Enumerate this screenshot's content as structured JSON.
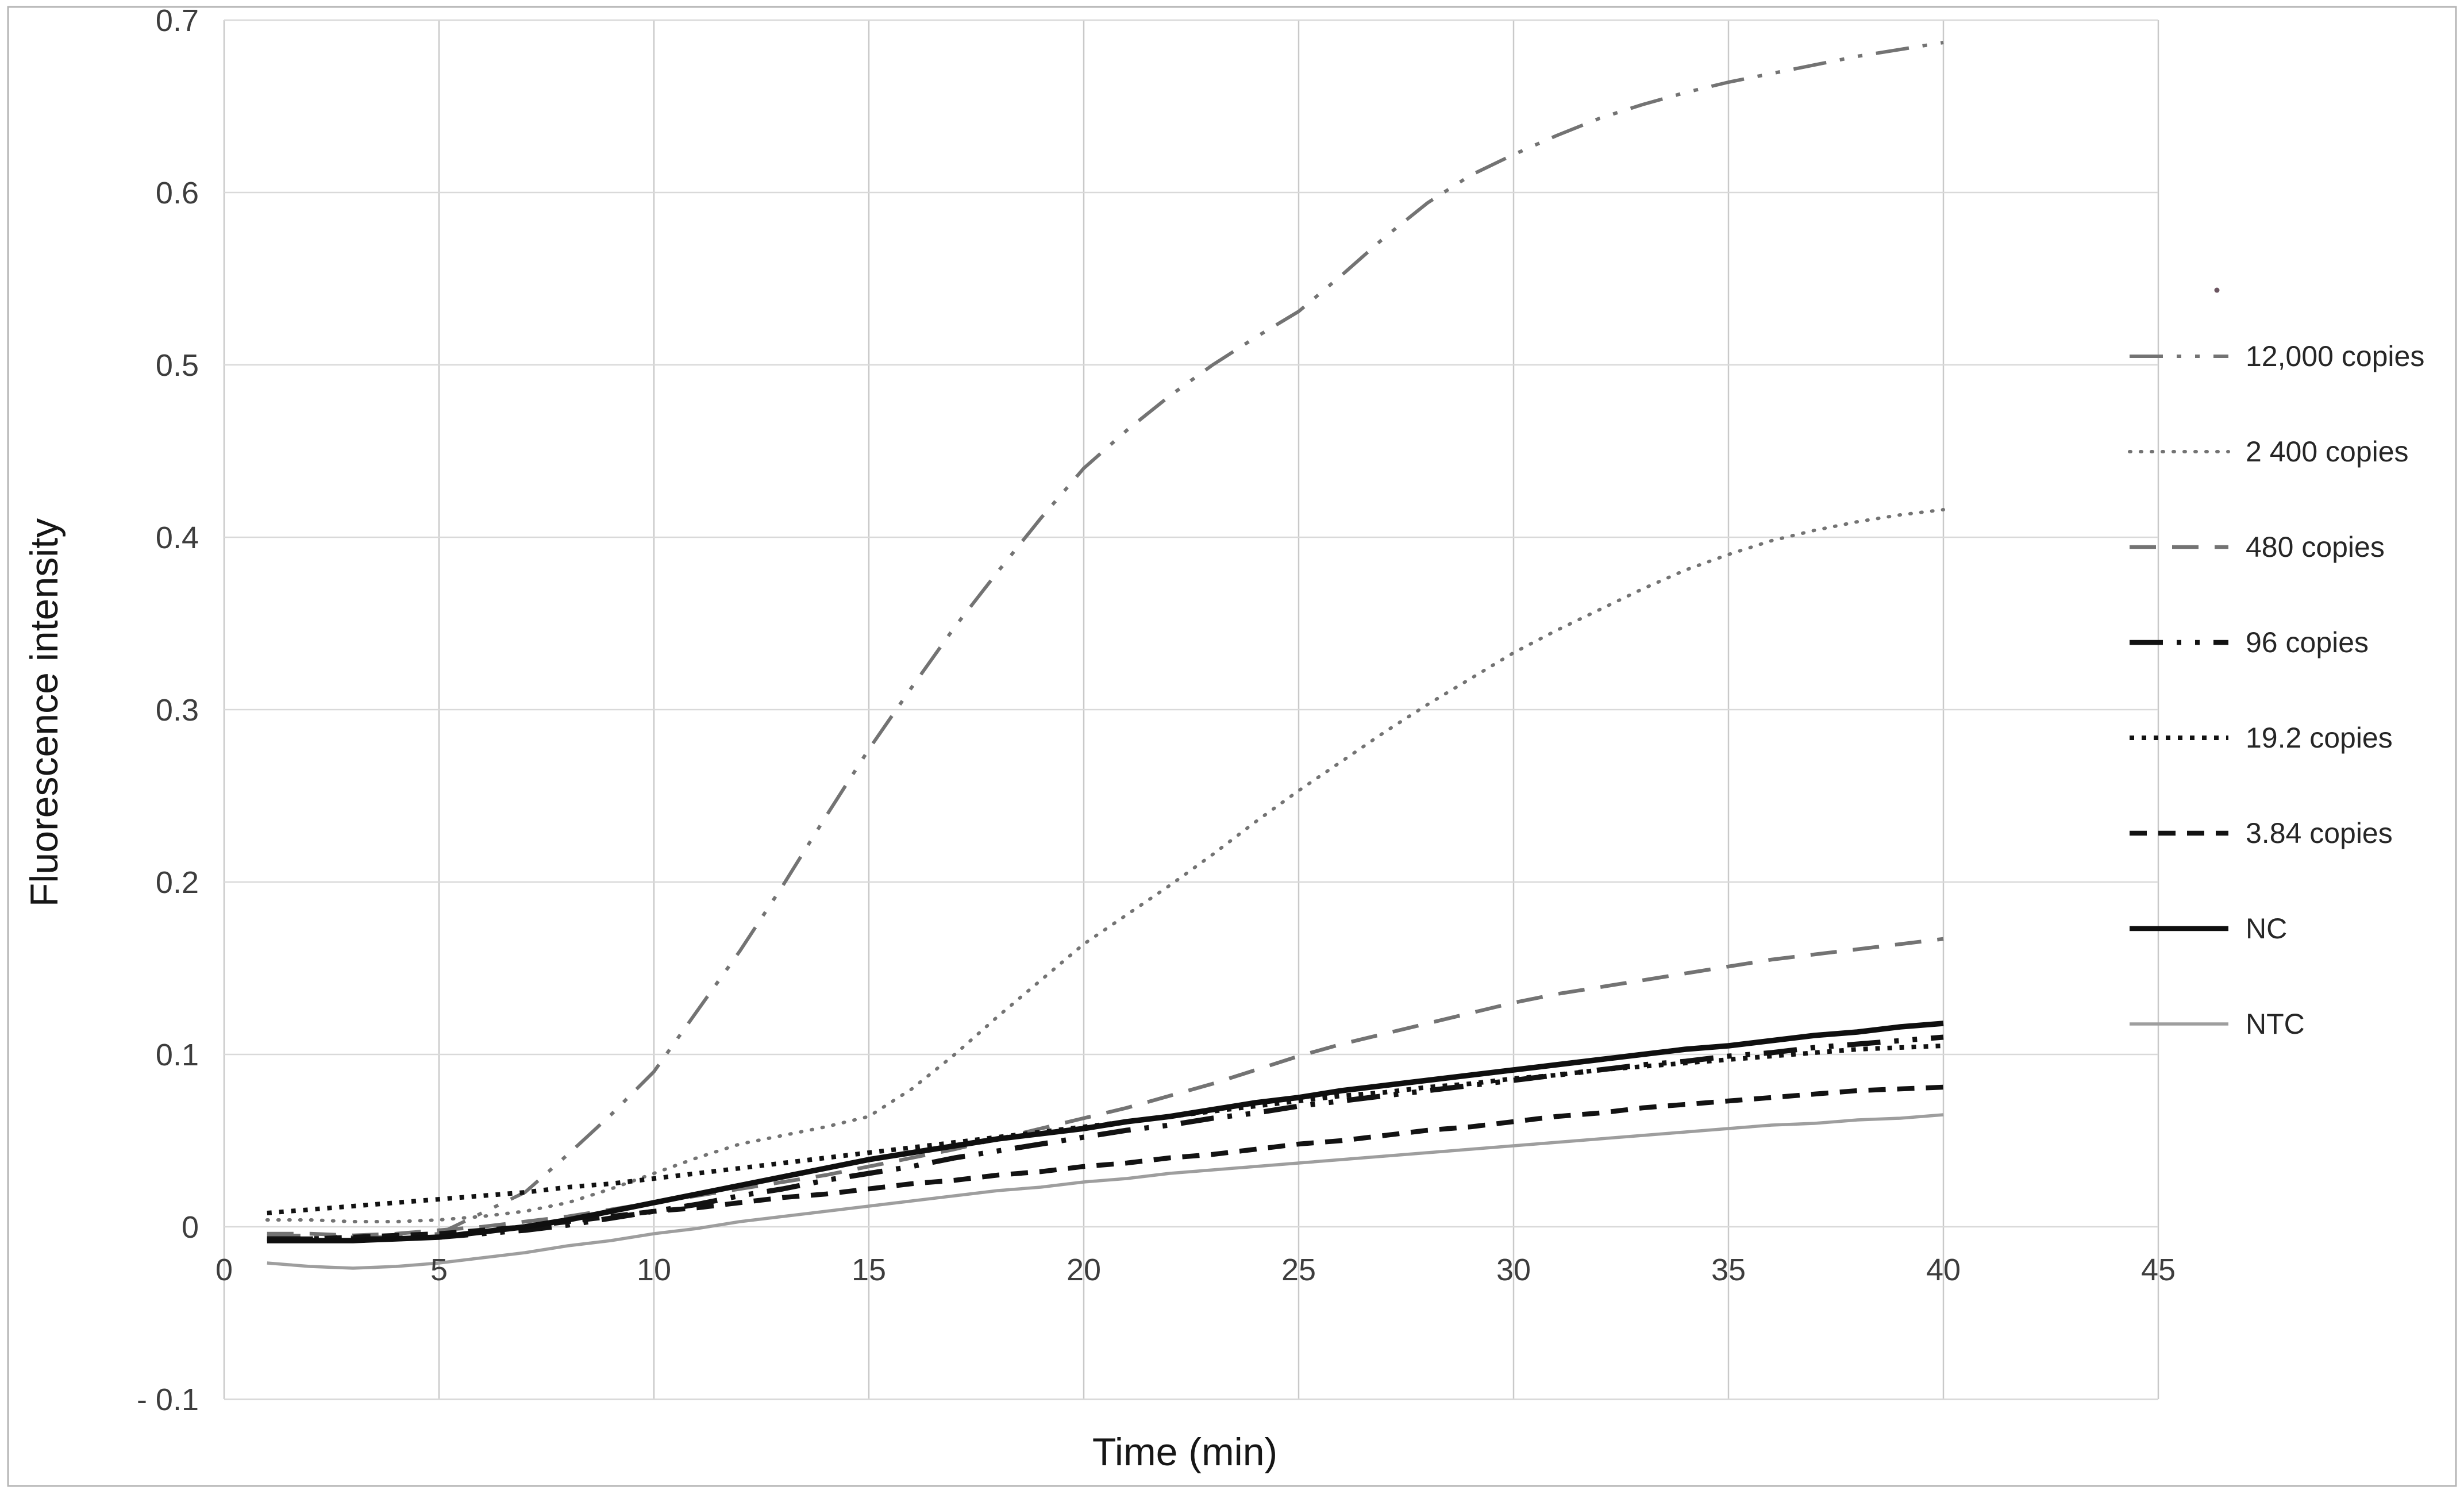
{
  "figure": {
    "x_axis_title": "Time (min)",
    "y_axis_title": "Fluorescence intensity"
  },
  "colors": {
    "gray_series": "#737373",
    "black_series": "#121212",
    "ntc_gray": "#9e9e9e",
    "gridline_h": "#d9d9d9",
    "gridline_v": "#c9c9c9",
    "figure_border": "#b5b5b5",
    "tick_text": "#3d3d3d"
  },
  "chart_data": {
    "type": "line",
    "title": "",
    "xlabel": "Time (min)",
    "ylabel": "Fluorescence intensity",
    "xlim": [
      0,
      45
    ],
    "ylim": [
      -0.1,
      0.7
    ],
    "grid": true,
    "legend_position": "right",
    "x_ticks": [
      {
        "v": 0,
        "label": "0"
      },
      {
        "v": 5,
        "label": "5"
      },
      {
        "v": 10,
        "label": "10"
      },
      {
        "v": 15,
        "label": "15"
      },
      {
        "v": 20,
        "label": "20"
      },
      {
        "v": 25,
        "label": "25"
      },
      {
        "v": 30,
        "label": "30"
      },
      {
        "v": 35,
        "label": "35"
      },
      {
        "v": 40,
        "label": "40"
      },
      {
        "v": 45,
        "label": "45"
      }
    ],
    "y_ticks": [
      {
        "v": 0.7,
        "label": "0.7"
      },
      {
        "v": 0.6,
        "label": "0.6"
      },
      {
        "v": 0.5,
        "label": "0.5"
      },
      {
        "v": 0.4,
        "label": "0.4"
      },
      {
        "v": 0.3,
        "label": "0.3"
      },
      {
        "v": 0.2,
        "label": "0.2"
      },
      {
        "v": 0.1,
        "label": "0.1"
      },
      {
        "v": 0,
        "label": "0"
      },
      {
        "v": -0.1,
        "label": "- 0.1"
      }
    ],
    "x": [
      1,
      1.5,
      2,
      3,
      4,
      5,
      6,
      7,
      8,
      9,
      10,
      11,
      12,
      13,
      14,
      15,
      16,
      17,
      18,
      19,
      20,
      21,
      22,
      23,
      24,
      25,
      26,
      27,
      28,
      29,
      30,
      31,
      32,
      33,
      34,
      35,
      36,
      37,
      38,
      39,
      40
    ],
    "series": [
      {
        "name": "12,000 copies",
        "color": "#737373",
        "line_style": "dash-dot-dot",
        "width": 6,
        "values": [
          -0.005,
          -0.005,
          -0.005,
          -0.006,
          -0.006,
          -0.004,
          0.008,
          0.02,
          0.042,
          0.065,
          0.09,
          0.125,
          0.16,
          0.198,
          0.238,
          0.277,
          0.313,
          0.348,
          0.38,
          0.411,
          0.44,
          0.462,
          0.482,
          0.5,
          0.516,
          0.531,
          0.552,
          0.574,
          0.594,
          0.61,
          0.622,
          0.633,
          0.643,
          0.651,
          0.658,
          0.664,
          0.669,
          0.674,
          0.679,
          0.683,
          0.687
        ]
      },
      {
        "name": "2 400 copies",
        "color": "#737373",
        "line_style": "dot-sparse",
        "width": 6,
        "values": [
          0.004,
          0.004,
          0.004,
          0.003,
          0.003,
          0.004,
          0.006,
          0.009,
          0.014,
          0.022,
          0.031,
          0.04,
          0.048,
          0.053,
          0.058,
          0.064,
          0.08,
          0.1,
          0.122,
          0.143,
          0.164,
          0.181,
          0.198,
          0.216,
          0.235,
          0.253,
          0.27,
          0.287,
          0.303,
          0.318,
          0.333,
          0.346,
          0.358,
          0.37,
          0.381,
          0.39,
          0.398,
          0.404,
          0.409,
          0.413,
          0.416
        ]
      },
      {
        "name": "480 copies",
        "color": "#737373",
        "line_style": "dash-long",
        "width": 6.5,
        "values": [
          -0.004,
          -0.004,
          -0.004,
          -0.005,
          -0.004,
          -0.002,
          0.0,
          0.003,
          0.006,
          0.01,
          0.014,
          0.018,
          0.022,
          0.026,
          0.03,
          0.035,
          0.04,
          0.045,
          0.051,
          0.057,
          0.063,
          0.069,
          0.076,
          0.083,
          0.091,
          0.099,
          0.106,
          0.112,
          0.118,
          0.124,
          0.13,
          0.135,
          0.139,
          0.143,
          0.147,
          0.151,
          0.155,
          0.158,
          0.161,
          0.164,
          0.167
        ]
      },
      {
        "name": "96 copies",
        "color": "#121212",
        "line_style": "dash-dot-dot",
        "width": 9,
        "values": [
          -0.007,
          -0.007,
          -0.007,
          -0.007,
          -0.007,
          -0.006,
          -0.004,
          -0.002,
          0.001,
          0.005,
          0.009,
          0.013,
          0.018,
          0.022,
          0.027,
          0.031,
          0.035,
          0.04,
          0.044,
          0.048,
          0.052,
          0.056,
          0.059,
          0.063,
          0.066,
          0.07,
          0.073,
          0.076,
          0.079,
          0.082,
          0.085,
          0.088,
          0.091,
          0.094,
          0.096,
          0.099,
          0.101,
          0.104,
          0.106,
          0.108,
          0.11
        ]
      },
      {
        "name": "19.2 copies",
        "color": "#121212",
        "line_style": "dot-dense",
        "width": 8,
        "values": [
          0.008,
          0.009,
          0.01,
          0.012,
          0.014,
          0.016,
          0.018,
          0.02,
          0.023,
          0.025,
          0.028,
          0.031,
          0.034,
          0.037,
          0.04,
          0.043,
          0.046,
          0.049,
          0.052,
          0.055,
          0.058,
          0.061,
          0.064,
          0.067,
          0.07,
          0.073,
          0.076,
          0.078,
          0.081,
          0.083,
          0.086,
          0.088,
          0.091,
          0.093,
          0.095,
          0.097,
          0.099,
          0.101,
          0.103,
          0.104,
          0.105
        ]
      },
      {
        "name": "3.84 copies",
        "color": "#121212",
        "line_style": "dash-short",
        "width": 8.5,
        "values": [
          -0.007,
          -0.007,
          -0.007,
          -0.006,
          -0.005,
          -0.004,
          -0.002,
          0.0,
          0.003,
          0.006,
          0.009,
          0.011,
          0.014,
          0.017,
          0.019,
          0.022,
          0.025,
          0.027,
          0.03,
          0.032,
          0.035,
          0.037,
          0.04,
          0.042,
          0.045,
          0.048,
          0.05,
          0.053,
          0.056,
          0.058,
          0.061,
          0.064,
          0.066,
          0.069,
          0.071,
          0.073,
          0.075,
          0.077,
          0.079,
          0.08,
          0.081
        ]
      },
      {
        "name": "NC",
        "color": "#0f0f0f",
        "line_style": "solid",
        "width": 9.5,
        "values": [
          -0.008,
          -0.008,
          -0.008,
          -0.008,
          -0.007,
          -0.006,
          -0.003,
          0.0,
          0.004,
          0.009,
          0.014,
          0.019,
          0.024,
          0.029,
          0.034,
          0.039,
          0.043,
          0.047,
          0.051,
          0.054,
          0.057,
          0.061,
          0.064,
          0.068,
          0.072,
          0.075,
          0.079,
          0.082,
          0.085,
          0.088,
          0.091,
          0.094,
          0.097,
          0.1,
          0.103,
          0.105,
          0.108,
          0.111,
          0.113,
          0.116,
          0.118
        ]
      },
      {
        "name": "NTC",
        "color": "#9e9e9e",
        "line_style": "solid",
        "width": 5.5,
        "values": [
          -0.021,
          -0.022,
          -0.023,
          -0.024,
          -0.023,
          -0.021,
          -0.018,
          -0.015,
          -0.011,
          -0.008,
          -0.004,
          -0.001,
          0.003,
          0.006,
          0.009,
          0.012,
          0.015,
          0.018,
          0.021,
          0.023,
          0.026,
          0.028,
          0.031,
          0.033,
          0.035,
          0.037,
          0.039,
          0.041,
          0.043,
          0.045,
          0.047,
          0.049,
          0.051,
          0.053,
          0.055,
          0.057,
          0.059,
          0.06,
          0.062,
          0.063,
          0.065
        ]
      }
    ]
  },
  "legend": {
    "labels": [
      "12,000 copies",
      "2 400 copies",
      "480 copies",
      "96 copies",
      "19.2 copies",
      "3.84 copies",
      "NC",
      "NTC"
    ]
  }
}
